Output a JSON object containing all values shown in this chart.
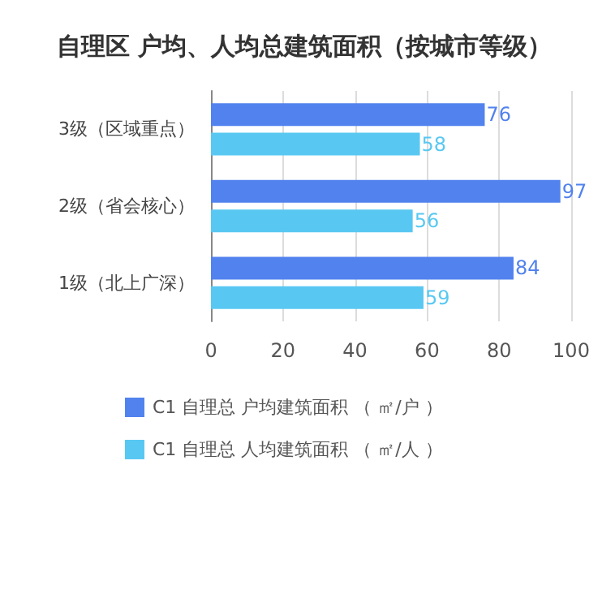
{
  "chart_data": {
    "type": "bar",
    "orientation": "horizontal",
    "title": "自理区 户均、人均总建筑面积（按城市等级）",
    "categories": [
      "3级（区域重点）",
      "2级（省会核心）",
      "1级（北上广深）"
    ],
    "series": [
      {
        "name": "C1 自理总 户均建筑面积 （ ㎡/户 ）",
        "color": "#5182ee",
        "values": [
          76,
          97,
          84
        ]
      },
      {
        "name": "C1 自理总 人均建筑面积 （ ㎡/人 ）",
        "color": "#58c8f2",
        "values": [
          58,
          56,
          59
        ]
      }
    ],
    "xlim": [
      0,
      100
    ],
    "xticks": [
      0,
      20,
      40,
      60,
      80,
      100
    ],
    "grid": "x",
    "legend": "bottom",
    "data_labels": true
  }
}
